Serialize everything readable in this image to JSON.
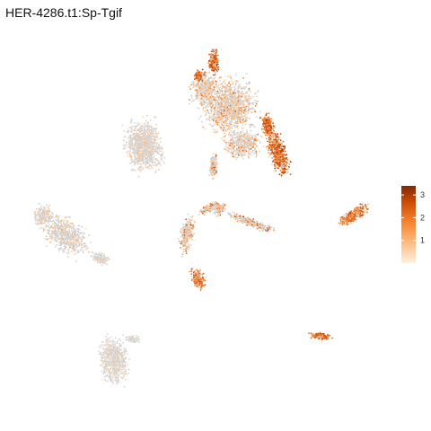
{
  "title": "HER-4286.t1:Sp-Tgif",
  "chart_data": {
    "type": "scatter",
    "subtype": "embedding feature plot",
    "xlabel": "",
    "ylabel": "",
    "axes_visible": false,
    "grid": false,
    "background_point_color": "#d3d3d3",
    "colorbar": {
      "placement": "right",
      "range": [
        0,
        3.4
      ],
      "ticks": [
        1,
        2,
        3
      ],
      "tick_labels": [
        "1",
        "2",
        "3"
      ],
      "colors": [
        "#fff0e2",
        "#fdbf86",
        "#f67f2a",
        "#c94a05",
        "#7f2704"
      ]
    },
    "clusters": [
      {
        "id": "upper-center-mass",
        "expression": "mixed",
        "max_level": 2.5
      },
      {
        "id": "upper-right-strip",
        "expression": "high",
        "max_level": 3.0
      },
      {
        "id": "upper-left-peak",
        "expression": "high",
        "max_level": 3.0
      },
      {
        "id": "left-center-blob",
        "expression": "low",
        "max_level": 1.0
      },
      {
        "id": "far-left-elongated",
        "expression": "low",
        "max_level": 1.2
      },
      {
        "id": "central-branches",
        "expression": "mixed",
        "max_level": 3.4
      },
      {
        "id": "right-elongated",
        "expression": "high",
        "max_level": 2.5
      },
      {
        "id": "lower-right-small",
        "expression": "high",
        "max_level": 2.8
      },
      {
        "id": "bottom-left-blob",
        "expression": "low",
        "max_level": 0.6
      },
      {
        "id": "lower-branch-tip",
        "expression": "high",
        "max_level": 2.6
      }
    ]
  }
}
